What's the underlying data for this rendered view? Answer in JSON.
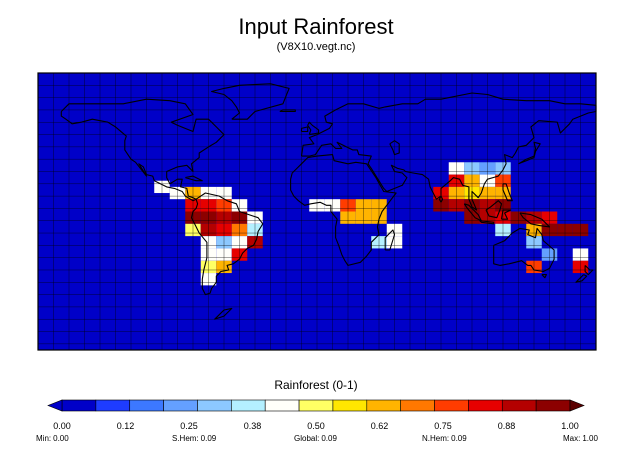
{
  "title": "Input Rainforest",
  "subtitle": "(V8X10.vegt.nc)",
  "legend": {
    "title": "Rainforest (0-1)",
    "ticks": [
      "0.00",
      "0.12",
      "0.25",
      "0.38",
      "0.50",
      "0.62",
      "0.75",
      "0.88",
      "1.00"
    ],
    "colors": [
      "#0000c8",
      "#1e3cff",
      "#3c78ff",
      "#64a0ff",
      "#8cc8ff",
      "#b4f0ff",
      "#fffffa",
      "#ffff64",
      "#ffe600",
      "#ffb400",
      "#ff7800",
      "#ff3c00",
      "#e60000",
      "#b40000",
      "#8c0000"
    ]
  },
  "stats": {
    "min_label": "Min:",
    "min_value": "0.00",
    "shem_label": "S.Hem:",
    "shem_value": "0.09",
    "global_label": "Global:",
    "global_value": "0.09",
    "nhem_label": "N.Hem:",
    "nhem_value": "0.09",
    "max_label": "Max:",
    "max_value": "1.00"
  },
  "map": {
    "background_color": "#0000c8",
    "grid_color": "#000000",
    "coastline_color": "#000000",
    "cells": [
      {
        "lon": -100,
        "lat": 16,
        "v": 0.4
      },
      {
        "lon": -90,
        "lat": 12,
        "v": 0.45
      },
      {
        "lon": -80,
        "lat": 12,
        "v": 0.6
      },
      {
        "lon": -70,
        "lat": 12,
        "v": 0.4
      },
      {
        "lon": -60,
        "lat": 12,
        "v": 0.4
      },
      {
        "lon": -80,
        "lat": 4,
        "v": 0.8
      },
      {
        "lon": -70,
        "lat": 4,
        "v": 0.85
      },
      {
        "lon": -60,
        "lat": 4,
        "v": 0.75
      },
      {
        "lon": -50,
        "lat": 4,
        "v": 0.4
      },
      {
        "lon": -80,
        "lat": -4,
        "v": 0.95
      },
      {
        "lon": -70,
        "lat": -4,
        "v": 1.0
      },
      {
        "lon": -60,
        "lat": -4,
        "v": 0.9
      },
      {
        "lon": -50,
        "lat": -4,
        "v": 0.95
      },
      {
        "lon": -40,
        "lat": -4,
        "v": 0.4
      },
      {
        "lon": -80,
        "lat": -12,
        "v": 0.5
      },
      {
        "lon": -70,
        "lat": -12,
        "v": 0.9
      },
      {
        "lon": -60,
        "lat": -12,
        "v": 0.85
      },
      {
        "lon": -50,
        "lat": -12,
        "v": 0.7
      },
      {
        "lon": -40,
        "lat": -12,
        "v": 0.35
      },
      {
        "lon": -70,
        "lat": -20,
        "v": 0.4
      },
      {
        "lon": -60,
        "lat": -20,
        "v": 0.3
      },
      {
        "lon": -50,
        "lat": -20,
        "v": 0.4
      },
      {
        "lon": -40,
        "lat": -20,
        "v": 0.9
      },
      {
        "lon": -70,
        "lat": -28,
        "v": 0.45
      },
      {
        "lon": -60,
        "lat": -28,
        "v": 0.4
      },
      {
        "lon": -50,
        "lat": -28,
        "v": 0.8
      },
      {
        "lon": -70,
        "lat": -36,
        "v": 0.5
      },
      {
        "lon": -60,
        "lat": -36,
        "v": 0.6
      },
      {
        "lon": -70,
        "lat": -44,
        "v": 0.4
      },
      {
        "lon": 0,
        "lat": 4,
        "v": 0.45
      },
      {
        "lon": 10,
        "lat": 4,
        "v": 0.45
      },
      {
        "lon": 20,
        "lat": 4,
        "v": 0.75
      },
      {
        "lon": 30,
        "lat": 4,
        "v": 0.6
      },
      {
        "lon": 40,
        "lat": 4,
        "v": 0.6
      },
      {
        "lon": 20,
        "lat": -4,
        "v": 0.6
      },
      {
        "lon": 30,
        "lat": -4,
        "v": 0.6
      },
      {
        "lon": 40,
        "lat": -4,
        "v": 0.6
      },
      {
        "lon": 50,
        "lat": -12,
        "v": 0.45
      },
      {
        "lon": 50,
        "lat": -20,
        "v": 0.45
      },
      {
        "lon": 40,
        "lat": -20,
        "v": 0.35
      },
      {
        "lon": 90,
        "lat": 28,
        "v": 0.4
      },
      {
        "lon": 100,
        "lat": 28,
        "v": 0.3
      },
      {
        "lon": 110,
        "lat": 28,
        "v": 0.25
      },
      {
        "lon": 120,
        "lat": 28,
        "v": 0.3
      },
      {
        "lon": 90,
        "lat": 20,
        "v": 0.8
      },
      {
        "lon": 100,
        "lat": 20,
        "v": 0.6
      },
      {
        "lon": 110,
        "lat": 20,
        "v": 0.45
      },
      {
        "lon": 120,
        "lat": 20,
        "v": 0.75
      },
      {
        "lon": 80,
        "lat": 12,
        "v": 0.8
      },
      {
        "lon": 90,
        "lat": 12,
        "v": 0.65
      },
      {
        "lon": 100,
        "lat": 12,
        "v": 0.55
      },
      {
        "lon": 110,
        "lat": 12,
        "v": 0.6
      },
      {
        "lon": 120,
        "lat": 12,
        "v": 0.6
      },
      {
        "lon": 80,
        "lat": 4,
        "v": 0.95
      },
      {
        "lon": 90,
        "lat": 4,
        "v": 0.9
      },
      {
        "lon": 100,
        "lat": 4,
        "v": 0.95
      },
      {
        "lon": 110,
        "lat": 4,
        "v": 0.9
      },
      {
        "lon": 120,
        "lat": 4,
        "v": 0.95
      },
      {
        "lon": 100,
        "lat": -4,
        "v": 0.95
      },
      {
        "lon": 110,
        "lat": -4,
        "v": 0.9
      },
      {
        "lon": 120,
        "lat": -4,
        "v": 0.85
      },
      {
        "lon": 130,
        "lat": -4,
        "v": 0.95
      },
      {
        "lon": 140,
        "lat": -4,
        "v": 0.9
      },
      {
        "lon": 150,
        "lat": -4,
        "v": 0.85
      },
      {
        "lon": 120,
        "lat": -12,
        "v": 0.35
      },
      {
        "lon": 140,
        "lat": -12,
        "v": 0.6
      },
      {
        "lon": 150,
        "lat": -12,
        "v": 0.95
      },
      {
        "lon": 160,
        "lat": -12,
        "v": 0.95
      },
      {
        "lon": 170,
        "lat": -12,
        "v": 0.95
      },
      {
        "lon": 140,
        "lat": -20,
        "v": 0.3
      },
      {
        "lon": 150,
        "lat": -28,
        "v": 0.25
      },
      {
        "lon": 170,
        "lat": -28,
        "v": 0.4
      },
      {
        "lon": 140,
        "lat": -36,
        "v": 0.75
      },
      {
        "lon": 170,
        "lat": -36,
        "v": 0.8
      }
    ]
  }
}
